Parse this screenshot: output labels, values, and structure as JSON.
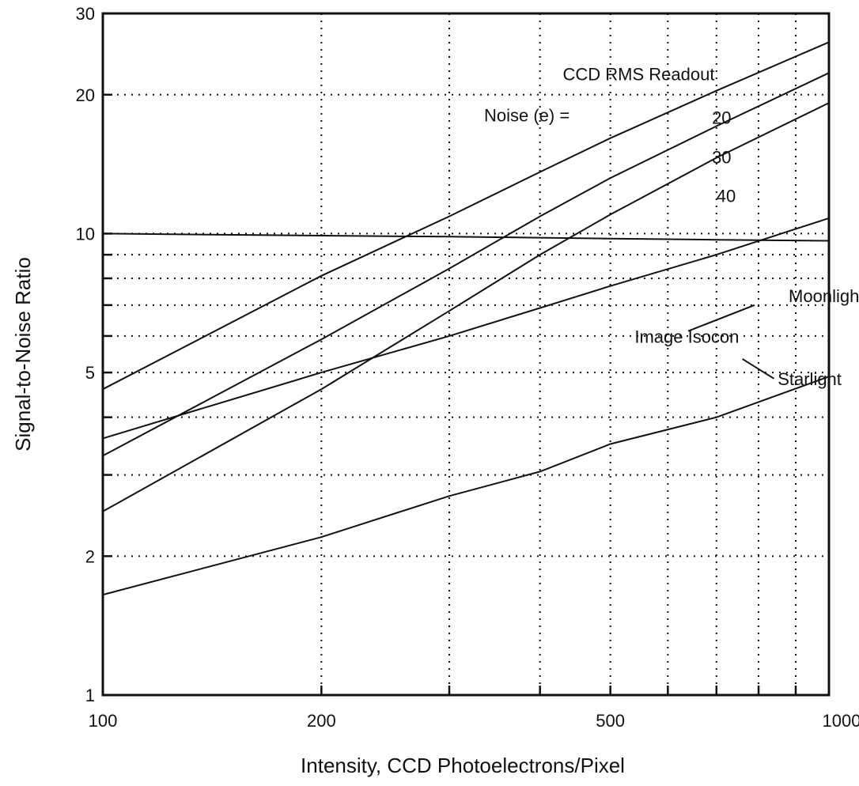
{
  "chart_data": {
    "type": "line",
    "xlabel": "Intensity, CCD Photoelectrons/Pixel",
    "ylabel": "Signal-to-Noise Ratio",
    "xscale": "log",
    "yscale": "log",
    "xlim": [
      100,
      1000
    ],
    "ylim": [
      1,
      30
    ],
    "grid": "dotted",
    "x_tick_labels": [
      "100",
      "200",
      "500",
      "1000"
    ],
    "x_tick_values": [
      100,
      200,
      500,
      1000
    ],
    "y_tick_labels": [
      "1",
      "2",
      "5",
      "10",
      "20",
      "30"
    ],
    "y_tick_values": [
      1,
      2,
      5,
      10,
      20,
      30
    ],
    "x_minor_ticks": [
      300,
      400,
      600,
      700,
      800,
      900
    ],
    "y_minor_ticks": [
      3,
      4,
      6,
      7,
      8,
      9
    ],
    "series": [
      {
        "label": "20",
        "x": [
          100,
          200,
          300,
          400,
          500,
          700,
          1000
        ],
        "y": [
          4.6,
          8.1,
          10.9,
          13.6,
          16.1,
          20.4,
          26.0
        ]
      },
      {
        "label": "30",
        "x": [
          100,
          200,
          300,
          400,
          500,
          700,
          1000
        ],
        "y": [
          3.3,
          5.9,
          8.4,
          10.9,
          13.2,
          17.1,
          22.3
        ]
      },
      {
        "label": "40",
        "x": [
          100,
          200,
          300,
          400,
          500,
          700,
          1000
        ],
        "y": [
          2.5,
          4.6,
          6.8,
          9.0,
          11.0,
          14.6,
          19.2
        ]
      },
      {
        "label": "Image Isocon Moonlight",
        "x": [
          100,
          200,
          300,
          400,
          500,
          700,
          1000
        ],
        "y": [
          10.0,
          9.9,
          9.85,
          9.8,
          9.75,
          9.7,
          9.65
        ]
      },
      {
        "label": "Image Isocon Starlight",
        "x": [
          100,
          200,
          300,
          400,
          500,
          700,
          1000
        ],
        "y": [
          3.6,
          5.0,
          6.0,
          6.9,
          7.7,
          9.0,
          10.8
        ]
      },
      {
        "label": "",
        "x": [
          100,
          200,
          300,
          400,
          500,
          700,
          1000
        ],
        "y": [
          1.65,
          2.2,
          2.7,
          3.05,
          3.5,
          4.0,
          4.9
        ]
      }
    ],
    "annotations": [
      {
        "text": "CCD RMS Readout",
        "x": 430,
        "y": 21.5
      },
      {
        "text": "Noise (e) =",
        "x": 335,
        "y": 17.5
      },
      {
        "text": "20",
        "x": 690,
        "y": 17.3
      },
      {
        "text": "30",
        "x": 690,
        "y": 14.2
      },
      {
        "text": "40",
        "x": 700,
        "y": 11.7
      },
      {
        "text": "Moonlight",
        "x": 880,
        "y": 7.1
      },
      {
        "text": "Image Isocon",
        "x": 540,
        "y": 5.8
      },
      {
        "text": "Starlight",
        "x": 850,
        "y": 4.7
      }
    ]
  }
}
